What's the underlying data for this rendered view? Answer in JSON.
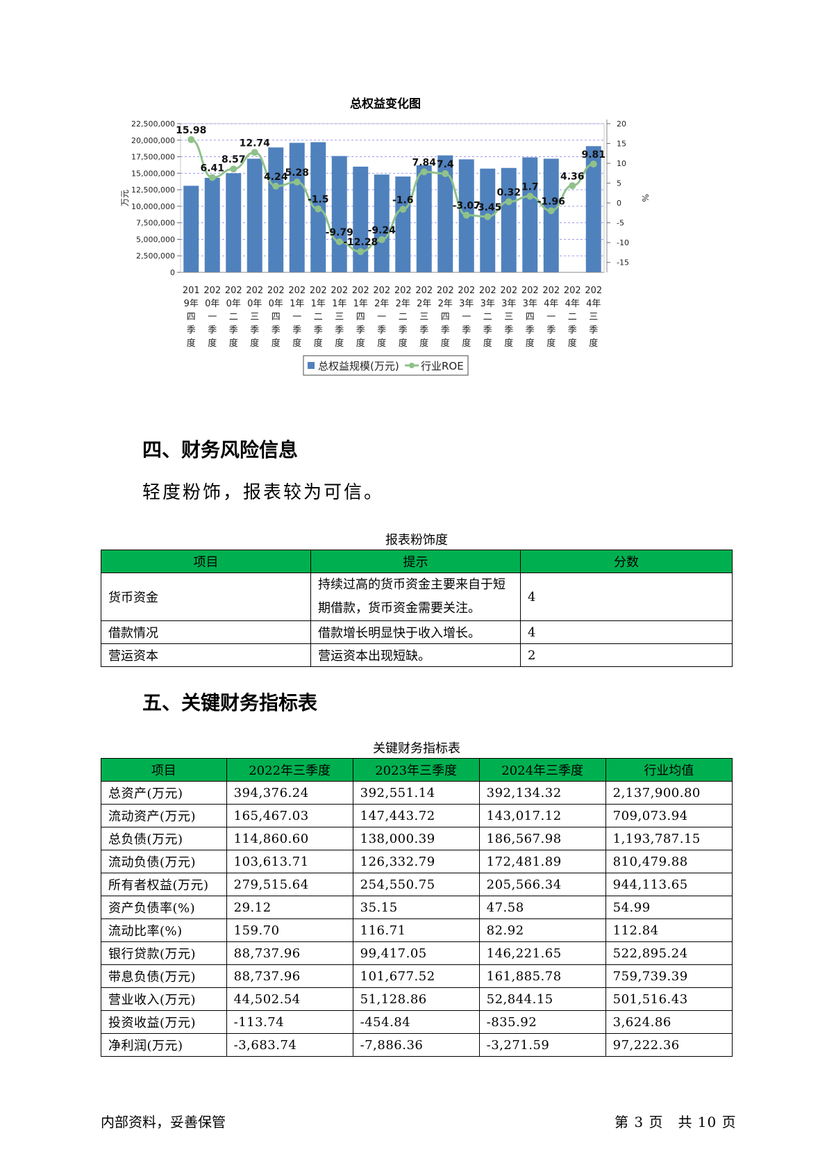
{
  "chart": {
    "title": "总权益变化图",
    "y_left_unit": "万元",
    "y_right_unit": "%",
    "legend": {
      "bar": "总权益规模(万元)",
      "line": "行业ROE"
    },
    "colors": {
      "bar": "#4f81bd",
      "line": "#8fc18a",
      "grid": "#9a9af0"
    }
  },
  "chart_data": {
    "type": "bar",
    "title": "总权益变化图",
    "ylabel": "万元",
    "y2label": "%",
    "ylim": [
      0,
      22500000
    ],
    "y2lim": [
      -17.5,
      20
    ],
    "y_ticks": [
      "22,500,000",
      "20,000,000",
      "17,500,000",
      "15,000,000",
      "12,500,000",
      "10,000,000",
      "7,500,000",
      "5,000,000",
      "2,500,000",
      "0"
    ],
    "y2_ticks": [
      "20",
      "15",
      "10",
      "5",
      "0",
      "-5",
      "-10",
      "-15"
    ],
    "categories": [
      [
        "201",
        "9年",
        "四",
        "季",
        "度"
      ],
      [
        "202",
        "0年",
        "一",
        "季",
        "度"
      ],
      [
        "202",
        "0年",
        "二",
        "季",
        "度"
      ],
      [
        "202",
        "0年",
        "三",
        "季",
        "度"
      ],
      [
        "202",
        "0年",
        "四",
        "季",
        "度"
      ],
      [
        "202",
        "1年",
        "一",
        "季",
        "度"
      ],
      [
        "202",
        "1年",
        "二",
        "季",
        "度"
      ],
      [
        "202",
        "1年",
        "三",
        "季",
        "度"
      ],
      [
        "202",
        "1年",
        "四",
        "季",
        "度"
      ],
      [
        "202",
        "2年",
        "一",
        "季",
        "度"
      ],
      [
        "202",
        "2年",
        "二",
        "季",
        "度"
      ],
      [
        "202",
        "2年",
        "三",
        "季",
        "度"
      ],
      [
        "202",
        "2年",
        "四",
        "季",
        "度"
      ],
      [
        "202",
        "3年",
        "一",
        "季",
        "度"
      ],
      [
        "202",
        "3年",
        "二",
        "季",
        "度"
      ],
      [
        "202",
        "3年",
        "三",
        "季",
        "度"
      ],
      [
        "202",
        "3年",
        "四",
        "季",
        "度"
      ],
      [
        "202",
        "4年",
        "一",
        "季",
        "度"
      ],
      [
        "202",
        "4年",
        "二",
        "季",
        "度"
      ],
      [
        "202",
        "4年",
        "三",
        "季",
        "度"
      ]
    ],
    "series": [
      {
        "name": "总权益规模(万元)",
        "type": "bar",
        "axis": "left",
        "values": [
          13100000,
          14300000,
          15000000,
          17200000,
          18900000,
          19600000,
          19700000,
          17600000,
          16000000,
          14800000,
          14500000,
          16200000,
          17700000,
          17100000,
          15700000,
          15800000,
          17400000,
          17200000,
          null,
          19100000
        ]
      },
      {
        "name": "行业ROE",
        "type": "line",
        "axis": "right",
        "values": [
          15.98,
          6.41,
          8.57,
          12.74,
          4.24,
          5.28,
          -1.5,
          -9.79,
          -12.28,
          -9.24,
          -1.6,
          7.84,
          7.4,
          -3.07,
          -3.45,
          0.32,
          1.7,
          -1.96,
          4.36,
          9.81
        ],
        "labels": [
          "15.98",
          "6.41",
          "8.57",
          "12.74",
          "4.24",
          "5.28",
          "-1.5",
          "-9.79",
          "-12.28",
          "-9.24",
          "-1.6",
          "7.84",
          "7.4",
          "-3.07",
          "-3.45",
          "0.32",
          "1.7",
          "-1.96",
          "4.36",
          "9.81"
        ]
      }
    ]
  },
  "section4": {
    "title": "四、财务风险信息",
    "summary": "轻度粉饰，报表较为可信。",
    "table_caption": "报表粉饰度",
    "headers": [
      "项目",
      "提示",
      "分数"
    ],
    "rows": [
      {
        "item": "货币资金",
        "hint": "持续过高的货币资金主要来自于短期借款，货币资金需要关注。",
        "score": "4"
      },
      {
        "item": "借款情况",
        "hint": "借款增长明显快于收入增长。",
        "score": "4"
      },
      {
        "item": "营运资本",
        "hint": "营运资本出现短缺。",
        "score": "2"
      }
    ]
  },
  "section5": {
    "title": "五、关键财务指标表",
    "table_caption": "关键财务指标表",
    "headers": [
      "项目",
      "2022年三季度",
      "2023年三季度",
      "2024年三季度",
      "行业均值"
    ],
    "rows": [
      [
        "总资产(万元)",
        "394,376.24",
        "392,551.14",
        "392,134.32",
        "2,137,900.80"
      ],
      [
        "流动资产(万元)",
        "165,467.03",
        "147,443.72",
        "143,017.12",
        "709,073.94"
      ],
      [
        "总负债(万元)",
        "114,860.60",
        "138,000.39",
        "186,567.98",
        "1,193,787.15"
      ],
      [
        "流动负债(万元)",
        "103,613.71",
        "126,332.79",
        "172,481.89",
        "810,479.88"
      ],
      [
        "所有者权益(万元)",
        "279,515.64",
        "254,550.75",
        "205,566.34",
        "944,113.65"
      ],
      [
        "资产负债率(%)",
        "29.12",
        "35.15",
        "47.58",
        "54.99"
      ],
      [
        "流动比率(%)",
        "159.70",
        "116.71",
        "82.92",
        "112.84"
      ],
      [
        "银行贷款(万元)",
        "88,737.96",
        "99,417.05",
        "146,221.65",
        "522,895.24"
      ],
      [
        "带息负债(万元)",
        "88,737.96",
        "101,677.52",
        "161,885.78",
        "759,739.39"
      ],
      [
        "营业收入(万元)",
        "44,502.54",
        "51,128.86",
        "52,844.15",
        "501,516.43"
      ],
      [
        "投资收益(万元)",
        "-113.74",
        "-454.84",
        "-835.92",
        "3,624.86"
      ],
      [
        "净利润(万元)",
        "-3,683.74",
        "-7,886.36",
        "-3,271.59",
        "97,222.36"
      ]
    ]
  },
  "footer": {
    "left": "内部资料，妥善保管",
    "right": "第 3 页　共 10 页"
  }
}
